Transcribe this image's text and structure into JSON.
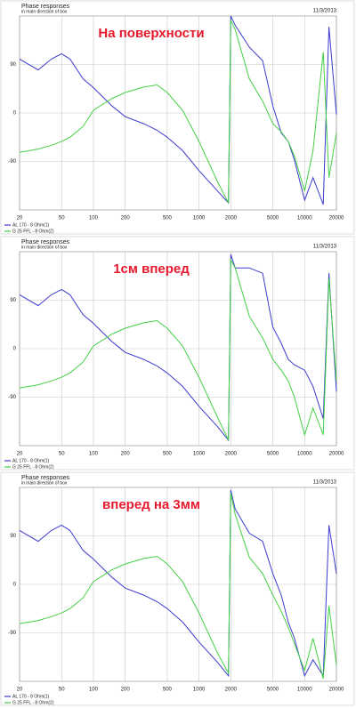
{
  "chart_data": [
    {
      "type": "line",
      "title": "Phase responses",
      "subtitle": "in main direction of box",
      "date": "11/3/2013",
      "annotation": "На поверхности",
      "x": [
        20,
        30,
        40,
        50,
        60,
        80,
        100,
        150,
        200,
        300,
        400,
        500,
        700,
        1000,
        1500,
        1900,
        2000,
        2200,
        3000,
        4000,
        5000,
        6000,
        7000,
        8000,
        10000,
        12000,
        15000,
        17000,
        20000
      ],
      "series": [
        {
          "name": "AL 170 - 8 Ohm(1)",
          "color": "#3b3bd0",
          "values": [
            100,
            80,
            100,
            110,
            100,
            63,
            47,
            13,
            -7,
            -20,
            -32,
            -45,
            -70,
            -107,
            -145,
            -167,
            180,
            163,
            122,
            97,
            13,
            -37,
            -53,
            -87,
            -162,
            -120,
            -170,
            160,
            -3
          ]
        },
        {
          "name": "G 25 FFL - 8 Ohm(2)",
          "color": "#44d044",
          "values": [
            -73,
            -67,
            -60,
            -53,
            -45,
            -25,
            5,
            27,
            38,
            48,
            52,
            38,
            5,
            -53,
            -128,
            -167,
            172,
            155,
            63,
            22,
            -20,
            -35,
            -53,
            -80,
            -145,
            -70,
            113,
            -120,
            -37
          ]
        }
      ],
      "xlim": [
        20,
        20000
      ],
      "xticks": [
        20,
        50,
        100,
        200,
        500,
        1000,
        2000,
        5000,
        10000,
        20000
      ],
      "log_x": true,
      "ylim": [
        -180,
        180
      ],
      "yticks": [
        90,
        0,
        -90
      ],
      "grid": true
    },
    {
      "type": "line",
      "title": "Phase responses",
      "subtitle": "in main direction of box",
      "date": "11/3/2013",
      "annotation": "1см вперед",
      "x": [
        20,
        30,
        40,
        50,
        60,
        80,
        100,
        150,
        200,
        300,
        400,
        500,
        700,
        1000,
        1500,
        1900,
        2000,
        2200,
        3000,
        4000,
        5000,
        6000,
        7000,
        8000,
        10000,
        12000,
        15000,
        17000,
        20000
      ],
      "series": [
        {
          "name": "AL 170 - 8 Ohm(1)",
          "color": "#3b3bd0",
          "values": [
            100,
            80,
            100,
            110,
            100,
            63,
            47,
            13,
            -7,
            -20,
            -32,
            -45,
            -70,
            -107,
            -145,
            -170,
            175,
            150,
            150,
            140,
            40,
            10,
            -20,
            -30,
            -40,
            -70,
            -130,
            140,
            -80
          ]
        },
        {
          "name": "G 25 FFL - 8 Ohm(2)",
          "color": "#44d044",
          "values": [
            -73,
            -67,
            -60,
            -53,
            -45,
            -25,
            5,
            27,
            38,
            48,
            52,
            38,
            5,
            -53,
            -128,
            -170,
            165,
            150,
            60,
            20,
            -20,
            -40,
            -60,
            -90,
            -160,
            -110,
            -160,
            130,
            -60
          ]
        }
      ],
      "xlim": [
        20,
        20000
      ],
      "xticks": [
        20,
        50,
        100,
        200,
        500,
        1000,
        2000,
        5000,
        10000,
        20000
      ],
      "log_x": true,
      "ylim": [
        -180,
        180
      ],
      "yticks": [
        90,
        0,
        -90
      ],
      "grid": true
    },
    {
      "type": "line",
      "title": "Phase responses",
      "subtitle": "in main direction of box",
      "date": "11/3/2013",
      "annotation": "вперед на 3мм",
      "x": [
        20,
        30,
        40,
        50,
        60,
        80,
        100,
        150,
        200,
        300,
        400,
        500,
        700,
        1000,
        1500,
        1900,
        2000,
        2200,
        3000,
        4000,
        5000,
        6000,
        7000,
        8000,
        10000,
        12000,
        15000,
        17000,
        20000
      ],
      "series": [
        {
          "name": "AL 170 - 8 Ohm(1)",
          "color": "#3b3bd0",
          "values": [
            100,
            80,
            100,
            110,
            100,
            63,
            47,
            13,
            -7,
            -20,
            -32,
            -45,
            -70,
            -107,
            -145,
            -170,
            175,
            140,
            95,
            80,
            20,
            -20,
            -70,
            -100,
            -170,
            -140,
            -170,
            110,
            20
          ]
        },
        {
          "name": "G 25 FFL - 8 Ohm(2)",
          "color": "#44d044",
          "values": [
            -73,
            -67,
            -60,
            -53,
            -45,
            -25,
            5,
            27,
            38,
            48,
            52,
            38,
            5,
            -53,
            -128,
            -165,
            170,
            130,
            50,
            20,
            -20,
            -50,
            -80,
            -110,
            -160,
            -100,
            -175,
            -40,
            -150
          ]
        }
      ],
      "xlim": [
        20,
        20000
      ],
      "xticks": [
        20,
        50,
        100,
        200,
        500,
        1000,
        2000,
        5000,
        10000,
        20000
      ],
      "log_x": true,
      "ylim": [
        -180,
        180
      ],
      "yticks": [
        90,
        0,
        -90
      ],
      "grid": true
    }
  ]
}
